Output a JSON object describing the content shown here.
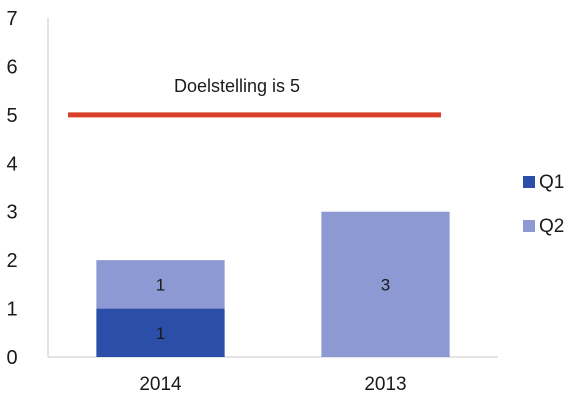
{
  "chart_data": {
    "type": "bar",
    "stacked": true,
    "categories": [
      "2014",
      "2013"
    ],
    "series": [
      {
        "name": "Q1",
        "values": [
          1,
          null
        ],
        "color": "#2b4fa8"
      },
      {
        "name": "Q2",
        "values": [
          1,
          3
        ],
        "color": "#8d99d3"
      }
    ],
    "data_labels": true,
    "target_line": {
      "value": 5,
      "label": "Doelstelling is 5",
      "color": "#d9402a"
    },
    "ylim": [
      0,
      7
    ],
    "yticks": [
      "0",
      "1",
      "2",
      "3",
      "4",
      "5",
      "6",
      "7"
    ],
    "grid": false,
    "legend_position": "right"
  }
}
